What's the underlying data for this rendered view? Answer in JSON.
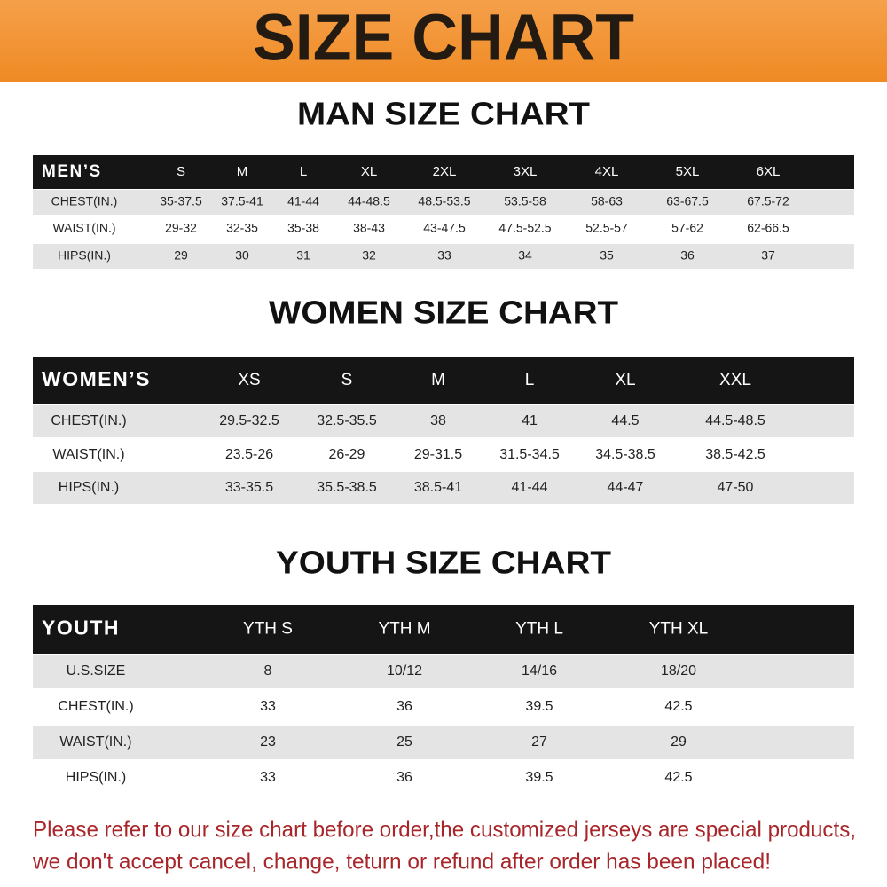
{
  "header": {
    "title": "SIZE CHART"
  },
  "sections": [
    {
      "title": "MAN SIZE CHART",
      "table": {
        "header": [
          "MEN’S",
          "S",
          "M",
          "L",
          "XL",
          "2XL",
          "3XL",
          "4XL",
          "5XL",
          "6XL"
        ],
        "rows": [
          [
            "CHEST(IN.)",
            "35-37.5",
            "37.5-41",
            "41-44",
            "44-48.5",
            "48.5-53.5",
            "53.5-58",
            "58-63",
            "63-67.5",
            "67.5-72"
          ],
          [
            "WAIST(IN.)",
            "29-32",
            "32-35",
            "35-38",
            "38-43",
            "43-47.5",
            "47.5-52.5",
            "52.5-57",
            "57-62",
            "62-66.5"
          ],
          [
            "HIPS(IN.)",
            "29",
            "30",
            "31",
            "32",
            "33",
            "34",
            "35",
            "36",
            "37"
          ]
        ]
      }
    },
    {
      "title": "WOMEN SIZE CHART",
      "table": {
        "header": [
          "WOMEN’S",
          "XS",
          "S",
          "M",
          "L",
          "XL",
          "XXL"
        ],
        "rows": [
          [
            "CHEST(IN.)",
            "29.5-32.5",
            "32.5-35.5",
            "38",
            "41",
            "44.5",
            "44.5-48.5"
          ],
          [
            "WAIST(IN.)",
            "23.5-26",
            "26-29",
            "29-31.5",
            "31.5-34.5",
            "34.5-38.5",
            "38.5-42.5"
          ],
          [
            "HIPS(IN.)",
            "33-35.5",
            "35.5-38.5",
            "38.5-41",
            "41-44",
            "44-47",
            "47-50"
          ]
        ]
      }
    },
    {
      "title": "YOUTH SIZE CHART",
      "table": {
        "header": [
          "YOUTH",
          "YTH S",
          "YTH M",
          "YTH L",
          "YTH XL"
        ],
        "rows": [
          [
            "U.S.SIZE",
            "8",
            "10/12",
            "14/16",
            "18/20"
          ],
          [
            "CHEST(IN.)",
            "33",
            "36",
            "39.5",
            "42.5"
          ],
          [
            "WAIST(IN.)",
            "23",
            "25",
            "27",
            "29"
          ],
          [
            "HIPS(IN.)",
            "33",
            "36",
            "39.5",
            "42.5"
          ]
        ]
      }
    }
  ],
  "notice": [
    "Please refer to our size chart before order,the customized jerseys are special products,",
    "we don't accept cancel, change, teturn or refund after order has been placed!"
  ]
}
